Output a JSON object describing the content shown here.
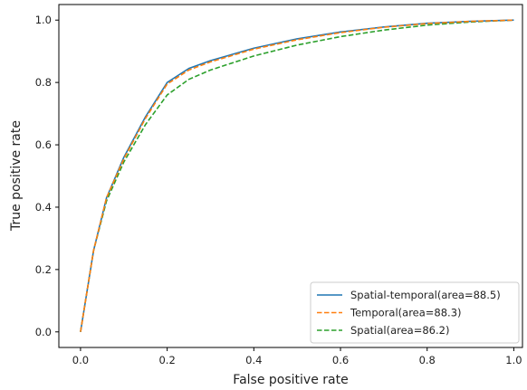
{
  "chart_data": {
    "type": "line",
    "title": "",
    "xlabel": "False positive rate",
    "ylabel": "True positive rate",
    "xlim": [
      -0.05,
      1.02
    ],
    "ylim": [
      -0.05,
      1.05
    ],
    "xticks": [
      0.0,
      0.2,
      0.4,
      0.6,
      0.8,
      1.0
    ],
    "yticks": [
      0.0,
      0.2,
      0.4,
      0.6,
      0.8,
      1.0
    ],
    "xtick_labels": [
      "0.0",
      "0.2",
      "0.4",
      "0.6",
      "0.8",
      "1.0"
    ],
    "ytick_labels": [
      "0.0",
      "0.2",
      "0.4",
      "0.6",
      "0.8",
      "1.0"
    ],
    "grid": false,
    "legend_position": "bottom-right",
    "series": [
      {
        "name": "Spatial-temporal(area=88.5)",
        "color": "#1f77b4",
        "linestyle": "solid",
        "x": [
          0.0,
          0.03,
          0.06,
          0.1,
          0.15,
          0.2,
          0.25,
          0.3,
          0.4,
          0.5,
          0.6,
          0.7,
          0.8,
          0.9,
          1.0
        ],
        "y": [
          0.0,
          0.26,
          0.43,
          0.56,
          0.69,
          0.8,
          0.845,
          0.87,
          0.91,
          0.94,
          0.962,
          0.978,
          0.99,
          0.996,
          1.0
        ]
      },
      {
        "name": "Temporal(area=88.3)",
        "color": "#ff7f0e",
        "linestyle": "dashed",
        "x": [
          0.0,
          0.03,
          0.06,
          0.1,
          0.15,
          0.2,
          0.25,
          0.3,
          0.4,
          0.5,
          0.6,
          0.7,
          0.8,
          0.9,
          1.0
        ],
        "y": [
          0.0,
          0.26,
          0.43,
          0.555,
          0.685,
          0.795,
          0.84,
          0.866,
          0.907,
          0.937,
          0.96,
          0.977,
          0.989,
          0.996,
          1.0
        ]
      },
      {
        "name": "Spatial(area=86.2)",
        "color": "#2ca02c",
        "linestyle": "dashed",
        "x": [
          0.0,
          0.03,
          0.06,
          0.1,
          0.15,
          0.2,
          0.25,
          0.3,
          0.4,
          0.5,
          0.6,
          0.7,
          0.8,
          0.9,
          1.0
        ],
        "y": [
          0.0,
          0.26,
          0.42,
          0.545,
          0.665,
          0.76,
          0.81,
          0.84,
          0.885,
          0.92,
          0.947,
          0.968,
          0.984,
          0.994,
          1.0
        ]
      }
    ]
  }
}
